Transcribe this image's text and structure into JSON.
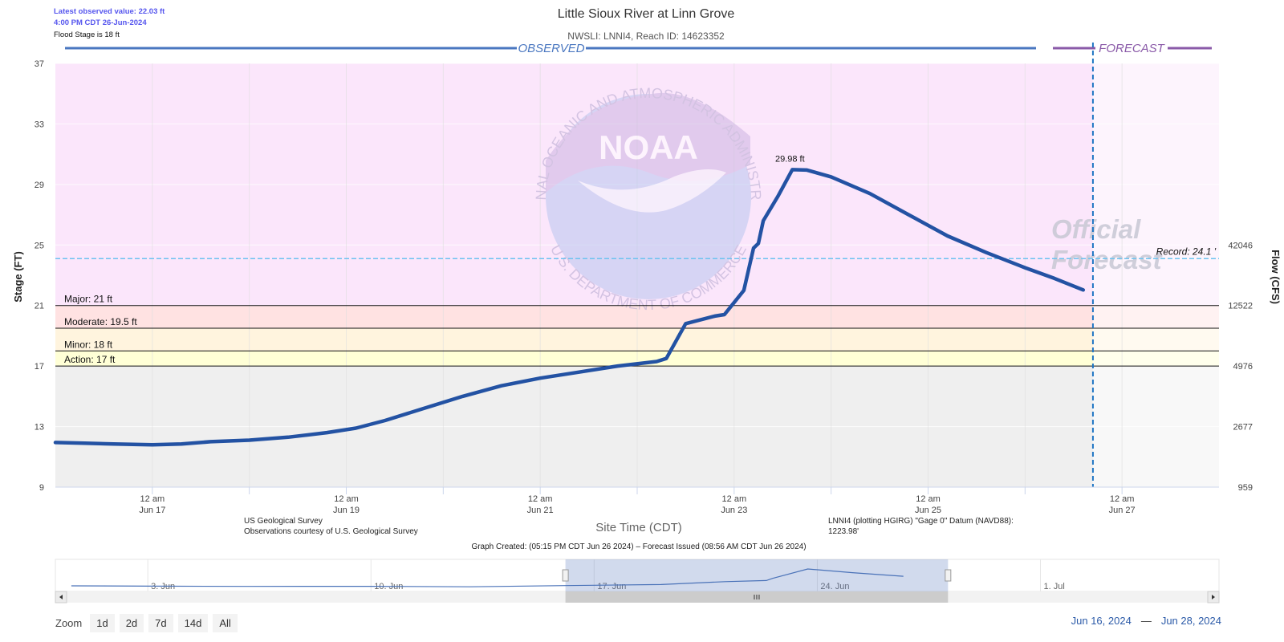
{
  "header": {
    "latest_value": "Latest observed value: 22.03 ft",
    "latest_time": "4:00 PM CDT 26-Jun-2024",
    "flood_stage": "Flood Stage is 18 ft",
    "title": "Little Sioux River at Linn Grove",
    "subtitle": "NWSLI: LNNI4, Reach ID: 14623352"
  },
  "colors": {
    "observed_line": "#2352a3",
    "observed_banner": "#4a77c0",
    "forecast_banner": "#8a5aa8",
    "major_fill": "#fbe6fb",
    "moderate_fill": "#ffe2e2",
    "minor_fill": "#fff4de",
    "action_fill": "#ffffd6",
    "normal_fill": "#efefef",
    "record_line": "#6cc3f0",
    "forecast_divider": "#1f76c4",
    "link_blue": "#2b5aa8",
    "label_blue": "#5555ee"
  },
  "banners": {
    "observed": "OBSERVED",
    "forecast": "FORECAST"
  },
  "chart_data": {
    "type": "line",
    "xlabel": "Site Time (CDT)",
    "ylabel": "Stage (FT)",
    "y2label": "Flow (CFS)",
    "ylim": [
      9,
      37
    ],
    "xlim_days": [
      "Jun 16",
      "Jun 28"
    ],
    "yticks": [
      "37",
      "33",
      "29",
      "25",
      "21",
      "17",
      "13",
      "9"
    ],
    "y2ticks": [
      {
        "stage": 25,
        "label": "42046"
      },
      {
        "stage": 21,
        "label": "12522"
      },
      {
        "stage": 17,
        "label": "4976"
      },
      {
        "stage": 13,
        "label": "2677"
      },
      {
        "stage": 9,
        "label": "959"
      }
    ],
    "xticks": [
      {
        "day": 17,
        "time": "12 am",
        "date": "Jun 17"
      },
      {
        "day": 19,
        "time": "12 am",
        "date": "Jun 19"
      },
      {
        "day": 21,
        "time": "12 am",
        "date": "Jun 21"
      },
      {
        "day": 23,
        "time": "12 am",
        "date": "Jun 23"
      },
      {
        "day": 25,
        "time": "12 am",
        "date": "Jun 25"
      },
      {
        "day": 27,
        "time": "12 am",
        "date": "Jun 27"
      }
    ],
    "thresholds": [
      {
        "name": "major",
        "label": "Major: 21 ft",
        "value": 21
      },
      {
        "name": "moderate",
        "label": "Moderate: 19.5 ft",
        "value": 19.5
      },
      {
        "name": "minor",
        "label": "Minor: 18 ft",
        "value": 18
      },
      {
        "name": "action",
        "label": "Action: 17 ft",
        "value": 17
      }
    ],
    "record": {
      "label": "Record: 24.1 '",
      "value": 24.1
    },
    "peak_label": "29.98 ft",
    "peak": {
      "day": 23.6,
      "value": 29.98
    },
    "forecast_start_day": 26.7,
    "series": [
      {
        "values": [
          {
            "x": 16.0,
            "y": 11.95
          },
          {
            "x": 16.3,
            "y": 11.9
          },
          {
            "x": 16.6,
            "y": 11.85
          },
          {
            "x": 17.0,
            "y": 11.8
          },
          {
            "x": 17.3,
            "y": 11.85
          },
          {
            "x": 17.6,
            "y": 12.0
          },
          {
            "x": 18.0,
            "y": 12.1
          },
          {
            "x": 18.4,
            "y": 12.3
          },
          {
            "x": 18.8,
            "y": 12.6
          },
          {
            "x": 19.1,
            "y": 12.9
          },
          {
            "x": 19.4,
            "y": 13.4
          },
          {
            "x": 19.8,
            "y": 14.2
          },
          {
            "x": 20.2,
            "y": 15.0
          },
          {
            "x": 20.6,
            "y": 15.7
          },
          {
            "x": 21.0,
            "y": 16.2
          },
          {
            "x": 21.4,
            "y": 16.6
          },
          {
            "x": 21.8,
            "y": 17.0
          },
          {
            "x": 22.2,
            "y": 17.3
          },
          {
            "x": 22.3,
            "y": 17.5
          },
          {
            "x": 22.5,
            "y": 19.8
          },
          {
            "x": 22.8,
            "y": 20.3
          },
          {
            "x": 22.9,
            "y": 20.4
          },
          {
            "x": 23.1,
            "y": 22.0
          },
          {
            "x": 23.2,
            "y": 24.8
          },
          {
            "x": 23.25,
            "y": 25.1
          },
          {
            "x": 23.3,
            "y": 26.6
          },
          {
            "x": 23.45,
            "y": 28.2
          },
          {
            "x": 23.6,
            "y": 29.98
          },
          {
            "x": 23.75,
            "y": 29.95
          },
          {
            "x": 24.0,
            "y": 29.5
          },
          {
            "x": 24.4,
            "y": 28.4
          },
          {
            "x": 24.8,
            "y": 27.0
          },
          {
            "x": 25.2,
            "y": 25.6
          },
          {
            "x": 25.6,
            "y": 24.5
          },
          {
            "x": 26.0,
            "y": 23.5
          },
          {
            "x": 26.3,
            "y": 22.8
          },
          {
            "x": 26.6,
            "y": 22.03
          }
        ]
      }
    ]
  },
  "credits": {
    "usgs_line1": "US Geological Survey",
    "usgs_line2": "Observations courtesy of U.S. Geological Survey",
    "datum_line1": "LNNI4 (plotting HGIRG) \"Gage 0\" Datum (NAVD88):",
    "datum_line2": "1223.98'",
    "graph_created": "Graph Created: (05:15 PM CDT Jun 26 2024) – Forecast Issued (08:56 AM CDT Jun 26 2024)"
  },
  "watermark": {
    "agency_top": "NATIONAL OCEANIC AND ATMOSPHERIC ADMINISTRATION",
    "agency_bottom": "U.S. DEPARTMENT OF COMMERCE",
    "logo": "NOAA",
    "official_forecast_1": "Official",
    "official_forecast_2": "Forecast"
  },
  "navigator": {
    "labels": [
      "3. Jun",
      "10. Jun",
      "17. Jun",
      "24. Jun",
      "1. Jul"
    ],
    "label_days": [
      3,
      10,
      17,
      24,
      31
    ],
    "series": [
      {
        "x": 0.5,
        "y": 11.6
      },
      {
        "x": 3,
        "y": 11.3
      },
      {
        "x": 6,
        "y": 11.0
      },
      {
        "x": 10,
        "y": 11.1
      },
      {
        "x": 13,
        "y": 10.6
      },
      {
        "x": 16,
        "y": 11.9
      },
      {
        "x": 19,
        "y": 13.0
      },
      {
        "x": 21,
        "y": 16.2
      },
      {
        "x": 22.3,
        "y": 17.4
      },
      {
        "x": 22.5,
        "y": 19.8
      },
      {
        "x": 23.6,
        "y": 29.98
      },
      {
        "x": 25,
        "y": 26.0
      },
      {
        "x": 26.6,
        "y": 22.03
      }
    ],
    "ylim": [
      9,
      37
    ],
    "xlim_days": [
      0,
      36.5
    ],
    "selected_days": [
      16,
      28
    ]
  },
  "zoom": {
    "label": "Zoom",
    "buttons": [
      "1d",
      "2d",
      "7d",
      "14d",
      "All"
    ]
  },
  "range": {
    "from": "Jun 16, 2024",
    "sep": "—",
    "to": "Jun 28, 2024"
  }
}
